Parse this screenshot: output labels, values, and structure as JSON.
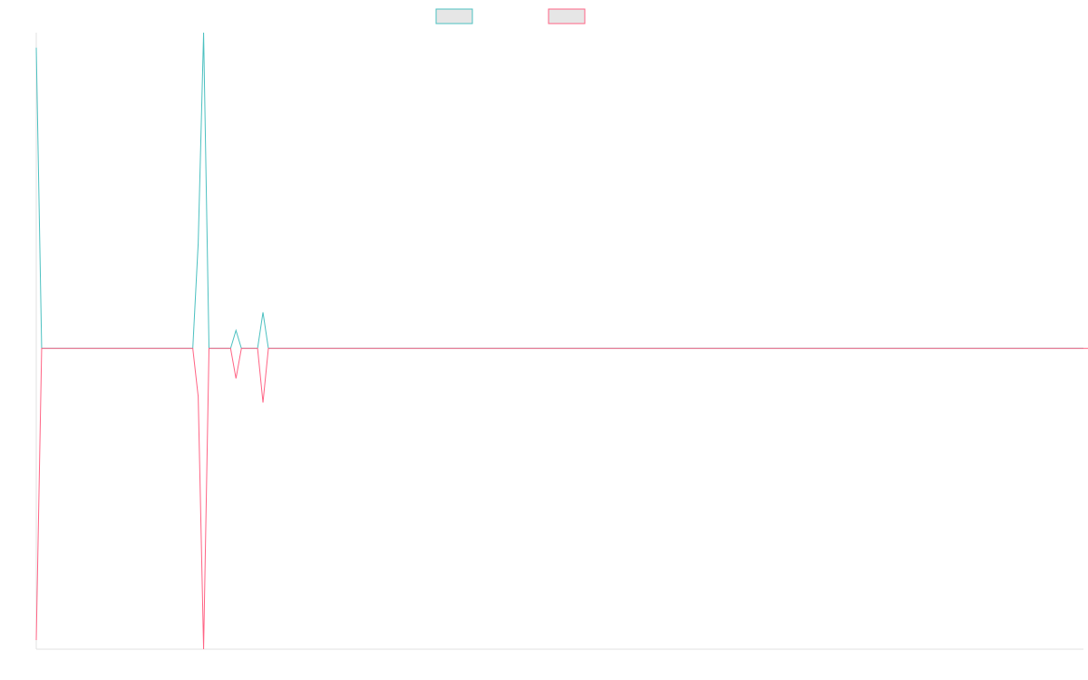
{
  "chart_data": {
    "type": "line",
    "title": "",
    "xlabel": "",
    "ylabel": "",
    "grid": false,
    "legend": {
      "placement": "top-center",
      "entries": [
        "",
        ""
      ]
    },
    "y_min": -1,
    "y_max": 1.05,
    "series": [
      {
        "name": "",
        "color": "#4bc0c0",
        "fill": "#e6e6e6",
        "values": [
          1,
          0,
          0,
          0,
          0,
          0,
          0,
          0,
          0,
          0,
          0,
          0,
          0,
          0,
          0,
          0,
          0,
          0,
          0,
          0,
          0,
          0,
          0,
          0,
          0,
          0,
          0,
          0,
          0,
          0,
          0.35,
          1.05,
          0,
          0,
          0,
          0,
          0,
          0.06,
          0,
          0,
          0,
          0,
          0.12,
          0,
          0,
          0,
          0,
          0,
          0,
          0,
          0,
          0,
          0,
          0,
          0,
          0,
          0,
          0,
          0,
          0,
          0,
          0,
          0,
          0,
          0,
          0,
          0,
          0,
          0,
          0,
          0,
          0,
          0,
          0,
          0,
          0,
          0,
          0,
          0,
          0,
          0,
          0,
          0,
          0,
          0,
          0,
          0,
          0,
          0,
          0,
          0,
          0,
          0,
          0,
          0,
          0,
          0,
          0,
          0,
          0,
          0,
          0,
          0,
          0,
          0,
          0,
          0,
          0,
          0,
          0,
          0,
          0,
          0,
          0,
          0,
          0,
          0,
          0,
          0,
          0,
          0,
          0,
          0,
          0,
          0,
          0,
          0,
          0,
          0,
          0,
          0,
          0,
          0,
          0,
          0,
          0,
          0,
          0,
          0,
          0,
          0,
          0,
          0,
          0,
          0,
          0,
          0,
          0,
          0,
          0,
          0,
          0,
          0,
          0,
          0,
          0,
          0,
          0,
          0,
          0,
          0,
          0,
          0,
          0,
          0,
          0,
          0,
          0,
          0,
          0,
          0,
          0,
          0,
          0,
          0,
          0,
          0,
          0,
          0,
          0,
          0,
          0,
          0,
          0,
          0,
          0,
          0,
          0,
          0,
          0,
          0,
          0,
          0,
          0,
          0
        ]
      },
      {
        "name": "",
        "color": "#ff6384",
        "fill": "#e6e6e6",
        "values": [
          -0.97,
          0,
          0,
          0,
          0,
          0,
          0,
          0,
          0,
          0,
          0,
          0,
          0,
          0,
          0,
          0,
          0,
          0,
          0,
          0,
          0,
          0,
          0,
          0,
          0,
          0,
          0,
          0,
          0,
          0,
          -0.16,
          -1.0,
          0,
          0,
          0,
          0,
          0,
          -0.1,
          0,
          0,
          0,
          0,
          -0.18,
          0,
          0,
          0,
          0,
          0,
          0,
          0,
          0,
          0,
          0,
          0,
          0,
          0,
          0,
          0,
          0,
          0,
          0,
          0,
          0,
          0,
          0,
          0,
          0,
          0,
          0,
          0,
          0,
          0,
          0,
          0,
          0,
          0,
          0,
          0,
          0,
          0,
          0,
          0,
          0,
          0,
          0,
          0,
          0,
          0,
          0,
          0,
          0,
          0,
          0,
          0,
          0,
          0,
          0,
          0,
          0,
          0,
          0,
          0,
          0,
          0,
          0,
          0,
          0,
          0,
          0,
          0,
          0,
          0,
          0,
          0,
          0,
          0,
          0,
          0,
          0,
          0,
          0,
          0,
          0,
          0,
          0,
          0,
          0,
          0,
          0,
          0,
          0,
          0,
          0,
          0,
          0,
          0,
          0,
          0,
          0,
          0,
          0,
          0,
          0,
          0,
          0,
          0,
          0,
          0,
          0,
          0,
          0,
          0,
          0,
          0,
          0,
          0,
          0,
          0,
          0,
          0,
          0,
          0,
          0,
          0,
          0,
          0,
          0,
          0,
          0,
          0,
          0,
          0,
          0,
          0,
          0,
          0,
          0,
          0,
          0,
          0,
          0,
          0,
          0,
          0,
          0,
          0,
          0,
          0,
          0,
          0,
          0,
          0,
          0,
          0,
          0,
          0,
          0
        ]
      }
    ]
  }
}
